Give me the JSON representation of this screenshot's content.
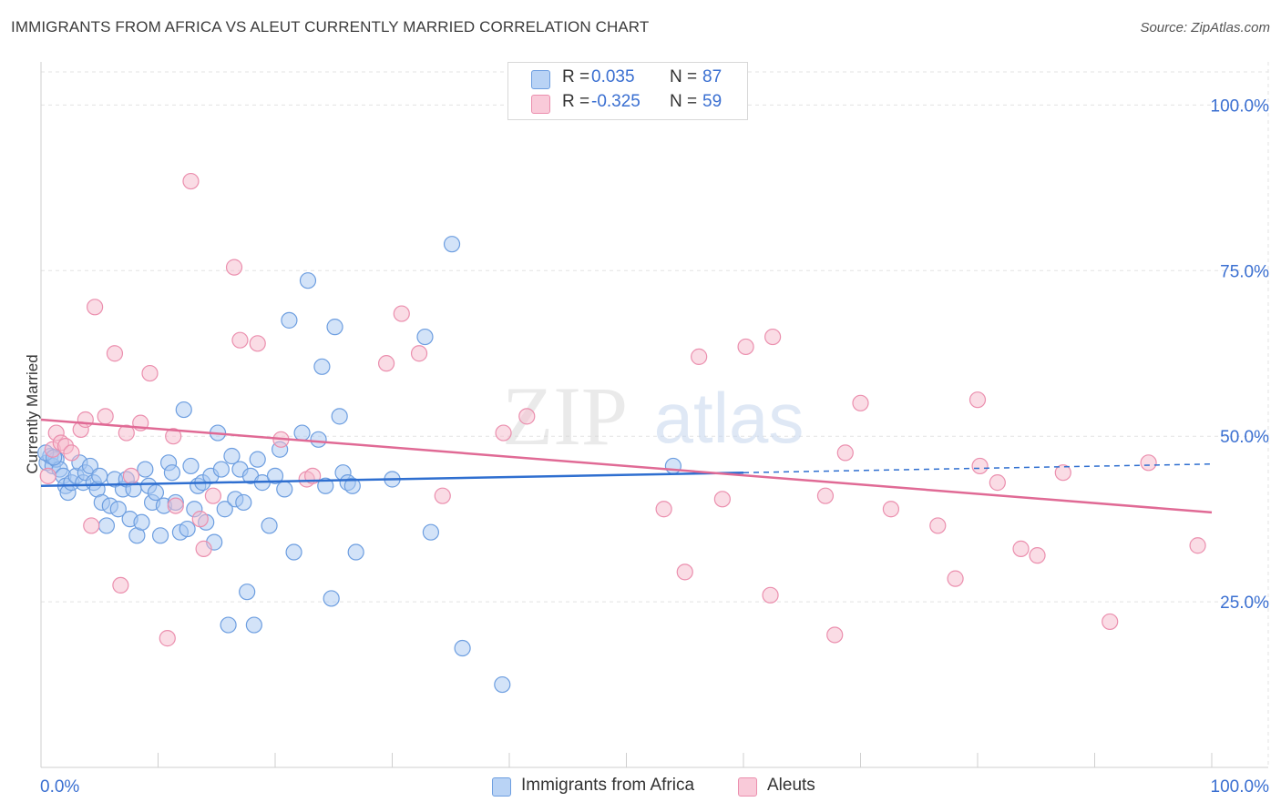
{
  "title": "IMMIGRANTS FROM AFRICA VS ALEUT CURRENTLY MARRIED CORRELATION CHART",
  "source": "Source: ZipAtlas.com",
  "watermark": {
    "zip": "ZIP",
    "atlas": "atlas"
  },
  "legend_top": [
    {
      "r_label": "R =",
      "r_value": "0.035",
      "n_label": "N =",
      "n_value": "87"
    },
    {
      "r_label": "R =",
      "r_value": "-0.325",
      "n_label": "N =",
      "n_value": "59"
    }
  ],
  "legend_bottom": [
    {
      "label": "Immigrants from Africa"
    },
    {
      "label": "Aleuts"
    }
  ],
  "colors": {
    "blue_fill": "#a8c8f2",
    "blue_stroke": "#6d9ee0",
    "blue_line": "#2f6fd0",
    "pink_fill": "#f6b9cc",
    "pink_stroke": "#eb8fae",
    "pink_line": "#e06a95",
    "tick_label": "#3a6fd1",
    "grid": "#e3e3e3"
  },
  "chart_data": {
    "type": "scatter",
    "title": "IMMIGRANTS FROM AFRICA VS ALEUT CURRENTLY MARRIED CORRELATION CHART",
    "xlabel": "",
    "ylabel": "Currently Married",
    "xlim": [
      0,
      100
    ],
    "ylim": [
      0,
      105
    ],
    "x_tick_labels": [
      "0.0%",
      "100.0%"
    ],
    "y_ticks": [
      25,
      50,
      75,
      100
    ],
    "y_tick_labels": [
      "25.0%",
      "50.0%",
      "75.0%",
      "100.0%"
    ],
    "grid": true,
    "legend_position": "top-center",
    "series": [
      {
        "name": "Immigrants from Africa",
        "color": "#a8c8f2",
        "trend": {
          "x0": 0,
          "y0": 42.5,
          "x1": 60,
          "y1": 44.5,
          "dashed_to_x": 100,
          "dashed_to_y": 45.8
        },
        "points": [
          [
            0.5,
            46
          ],
          [
            0.8,
            47
          ],
          [
            1.0,
            45.5
          ],
          [
            1.3,
            46.5
          ],
          [
            1.6,
            45
          ],
          [
            1.9,
            44
          ],
          [
            2.1,
            42.5
          ],
          [
            2.3,
            41.5
          ],
          [
            2.6,
            43
          ],
          [
            3.0,
            44
          ],
          [
            3.3,
            46
          ],
          [
            3.6,
            43
          ],
          [
            3.8,
            44.5
          ],
          [
            4.2,
            45.5
          ],
          [
            4.5,
            43
          ],
          [
            4.8,
            42
          ],
          [
            5.0,
            44
          ],
          [
            5.2,
            40
          ],
          [
            5.6,
            36.5
          ],
          [
            5.9,
            39.5
          ],
          [
            6.3,
            43.5
          ],
          [
            6.6,
            39
          ],
          [
            7.0,
            42
          ],
          [
            7.3,
            43.5
          ],
          [
            7.6,
            37.5
          ],
          [
            7.9,
            42
          ],
          [
            8.2,
            35
          ],
          [
            8.6,
            37
          ],
          [
            8.9,
            45
          ],
          [
            9.2,
            42.5
          ],
          [
            9.5,
            40
          ],
          [
            9.8,
            41.5
          ],
          [
            10.2,
            35
          ],
          [
            10.5,
            39.5
          ],
          [
            10.9,
            46
          ],
          [
            11.2,
            44.5
          ],
          [
            11.5,
            40
          ],
          [
            11.9,
            35.5
          ],
          [
            12.2,
            54
          ],
          [
            12.5,
            36
          ],
          [
            12.8,
            45.5
          ],
          [
            13.1,
            39
          ],
          [
            13.4,
            42.5
          ],
          [
            13.8,
            43
          ],
          [
            14.1,
            37
          ],
          [
            14.5,
            44
          ],
          [
            14.8,
            34
          ],
          [
            15.1,
            50.5
          ],
          [
            15.4,
            45
          ],
          [
            15.7,
            39
          ],
          [
            16.0,
            21.5
          ],
          [
            16.3,
            47
          ],
          [
            16.6,
            40.5
          ],
          [
            17.0,
            45
          ],
          [
            17.3,
            40
          ],
          [
            17.6,
            26.5
          ],
          [
            17.9,
            44
          ],
          [
            18.2,
            21.5
          ],
          [
            18.5,
            46.5
          ],
          [
            18.9,
            43
          ],
          [
            19.5,
            36.5
          ],
          [
            20.0,
            44
          ],
          [
            20.4,
            48
          ],
          [
            20.8,
            42
          ],
          [
            21.2,
            67.5
          ],
          [
            21.6,
            32.5
          ],
          [
            22.3,
            50.5
          ],
          [
            22.8,
            73.5
          ],
          [
            23.7,
            49.5
          ],
          [
            24.0,
            60.5
          ],
          [
            24.3,
            42.5
          ],
          [
            24.8,
            25.5
          ],
          [
            25.1,
            66.5
          ],
          [
            25.5,
            53
          ],
          [
            25.8,
            44.5
          ],
          [
            26.2,
            43
          ],
          [
            26.6,
            42.5
          ],
          [
            26.9,
            32.5
          ],
          [
            30.0,
            43.5
          ],
          [
            32.8,
            65
          ],
          [
            33.3,
            35.5
          ],
          [
            35.1,
            79
          ],
          [
            36.0,
            18
          ],
          [
            39.4,
            12.5
          ],
          [
            54.0,
            45.5
          ],
          [
            0.4,
            47.5
          ],
          [
            1.1,
            46.8
          ]
        ]
      },
      {
        "name": "Aleuts",
        "color": "#f6b9cc",
        "trend": {
          "x0": 0,
          "y0": 52.5,
          "x1": 100,
          "y1": 38.5
        },
        "points": [
          [
            0.6,
            44
          ],
          [
            1.0,
            48
          ],
          [
            1.3,
            50.5
          ],
          [
            1.7,
            49
          ],
          [
            2.1,
            48.5
          ],
          [
            2.6,
            47.5
          ],
          [
            3.4,
            51
          ],
          [
            3.8,
            52.5
          ],
          [
            4.3,
            36.5
          ],
          [
            4.6,
            69.5
          ],
          [
            5.5,
            53
          ],
          [
            6.3,
            62.5
          ],
          [
            6.8,
            27.5
          ],
          [
            7.3,
            50.5
          ],
          [
            7.7,
            44
          ],
          [
            8.5,
            52
          ],
          [
            9.3,
            59.5
          ],
          [
            10.8,
            19.5
          ],
          [
            11.3,
            50
          ],
          [
            11.5,
            39.5
          ],
          [
            12.8,
            88.5
          ],
          [
            13.6,
            37.5
          ],
          [
            13.9,
            33
          ],
          [
            14.7,
            41
          ],
          [
            16.5,
            75.5
          ],
          [
            17.0,
            64.5
          ],
          [
            18.5,
            64
          ],
          [
            20.5,
            49.5
          ],
          [
            22.7,
            43.5
          ],
          [
            23.2,
            44
          ],
          [
            29.5,
            61
          ],
          [
            30.8,
            68.5
          ],
          [
            32.3,
            62.5
          ],
          [
            34.3,
            41
          ],
          [
            39.5,
            50.5
          ],
          [
            41.5,
            53
          ],
          [
            53.2,
            39
          ],
          [
            55.0,
            29.5
          ],
          [
            56.2,
            62
          ],
          [
            58.2,
            40.5
          ],
          [
            60.2,
            63.5
          ],
          [
            62.3,
            26
          ],
          [
            62.5,
            65
          ],
          [
            67.0,
            41
          ],
          [
            67.8,
            20
          ],
          [
            68.7,
            47.5
          ],
          [
            70.0,
            55
          ],
          [
            72.6,
            39
          ],
          [
            76.6,
            36.5
          ],
          [
            78.1,
            28.5
          ],
          [
            80.0,
            55.5
          ],
          [
            80.2,
            45.5
          ],
          [
            81.7,
            43
          ],
          [
            83.7,
            33
          ],
          [
            85.1,
            32
          ],
          [
            87.3,
            44.5
          ],
          [
            91.3,
            22
          ],
          [
            94.6,
            46
          ],
          [
            98.8,
            33.5
          ]
        ]
      }
    ]
  }
}
